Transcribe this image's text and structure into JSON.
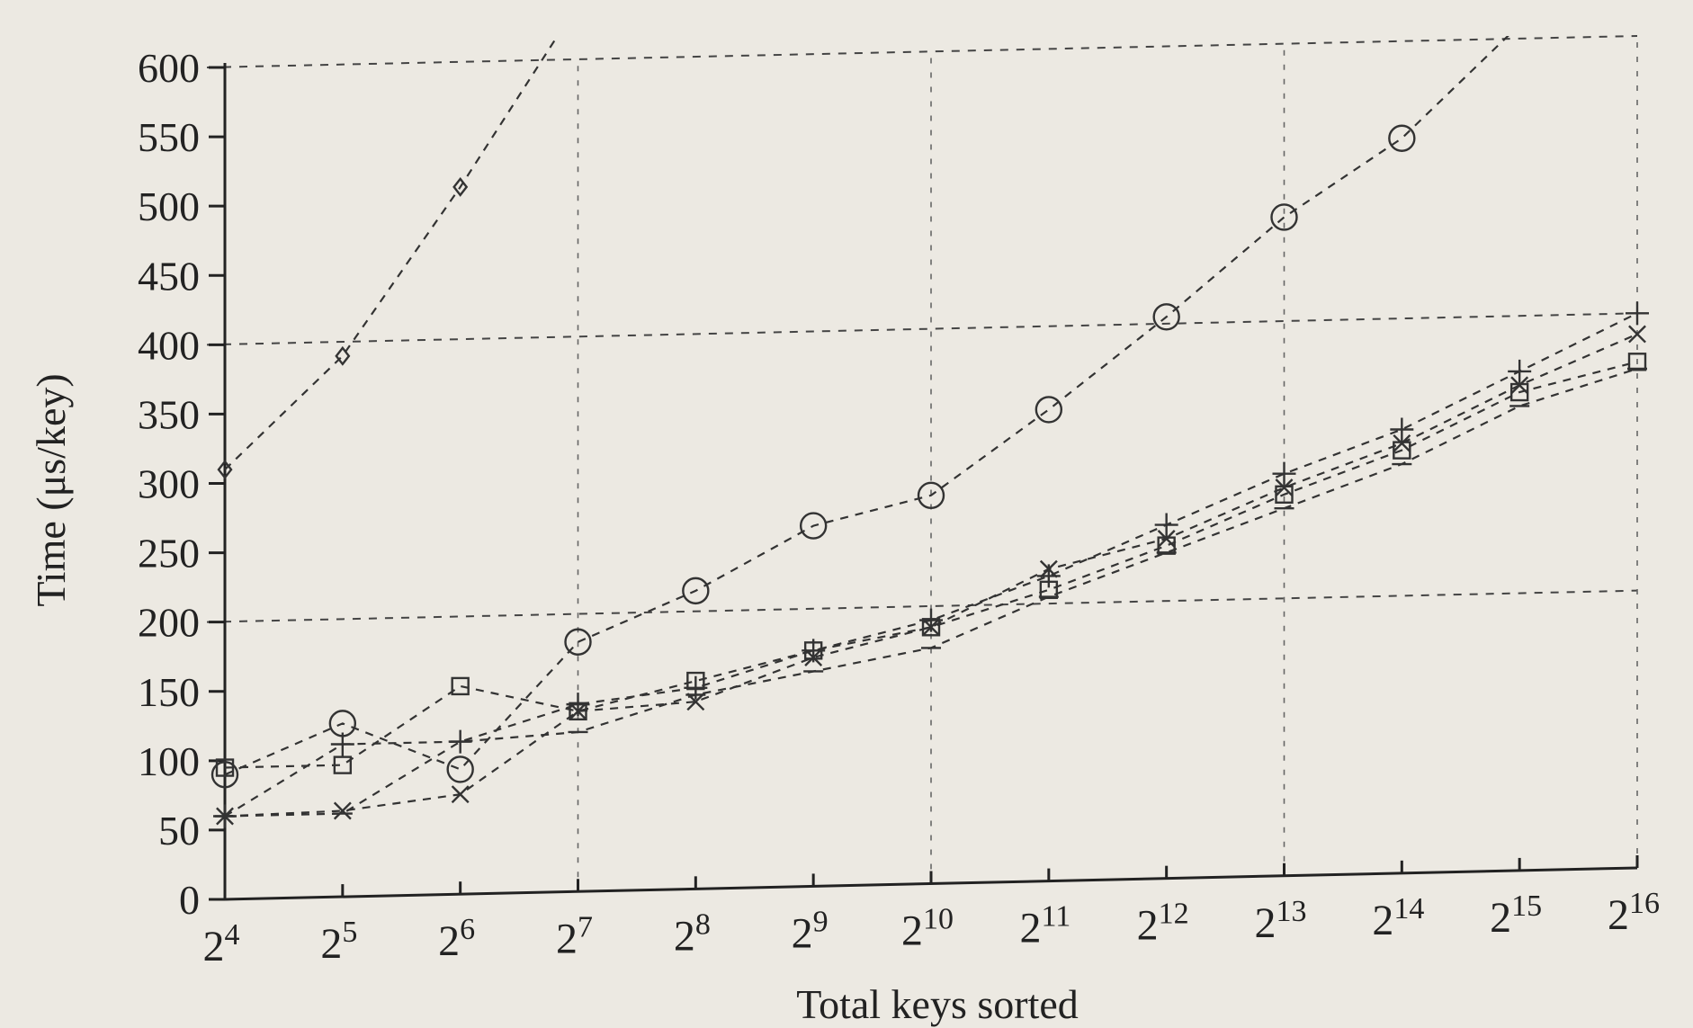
{
  "chart_data": {
    "type": "line",
    "title": "",
    "xlabel": "Total keys sorted",
    "ylabel": "Time (μs/key)",
    "x_scale": "log2",
    "x": [
      16,
      32,
      64,
      128,
      256,
      512,
      1024,
      2048,
      4096,
      8192,
      16384,
      32768,
      65536
    ],
    "x_tick_labels": [
      {
        "base": "2",
        "exp": "4"
      },
      {
        "base": "2",
        "exp": "5"
      },
      {
        "base": "2",
        "exp": "6"
      },
      {
        "base": "2",
        "exp": "7"
      },
      {
        "base": "2",
        "exp": "8"
      },
      {
        "base": "2",
        "exp": "9"
      },
      {
        "base": "2",
        "exp": "10"
      },
      {
        "base": "2",
        "exp": "11"
      },
      {
        "base": "2",
        "exp": "12"
      },
      {
        "base": "2",
        "exp": "13"
      },
      {
        "base": "2",
        "exp": "14"
      },
      {
        "base": "2",
        "exp": "15"
      },
      {
        "base": "2",
        "exp": "16"
      }
    ],
    "ylim": [
      0,
      600
    ],
    "y_ticks": [
      "0",
      "50",
      "100",
      "150",
      "200",
      "250",
      "300",
      "350",
      "400",
      "450",
      "500",
      "550",
      "600"
    ],
    "y_gridlines": [
      200,
      400,
      600
    ],
    "legend": "none",
    "series": [
      {
        "marker": "diamond",
        "values": [
          310,
          390,
          510,
          640,
          null,
          null,
          null,
          null,
          null,
          null,
          null,
          null,
          null
        ]
      },
      {
        "marker": "circle",
        "values": [
          90,
          125,
          90,
          180,
          215,
          260,
          280,
          340,
          405,
          475,
          530,
          610,
          null
        ]
      },
      {
        "marker": "square",
        "values": [
          95,
          95,
          150,
          130,
          150,
          170,
          185,
          210,
          240,
          275,
          305,
          345,
          365
        ]
      },
      {
        "marker": "cross",
        "values": [
          60,
          62,
          72,
          130,
          135,
          165,
          185,
          225,
          245,
          280,
          310,
          350,
          385
        ]
      },
      {
        "marker": "plus",
        "values": [
          60,
          110,
          110,
          135,
          145,
          170,
          190,
          220,
          255,
          290,
          320,
          360,
          400
        ]
      },
      {
        "marker": "bar",
        "values": [
          60,
          60,
          110,
          115,
          140,
          155,
          170,
          205,
          235,
          265,
          295,
          335,
          360
        ]
      }
    ]
  }
}
